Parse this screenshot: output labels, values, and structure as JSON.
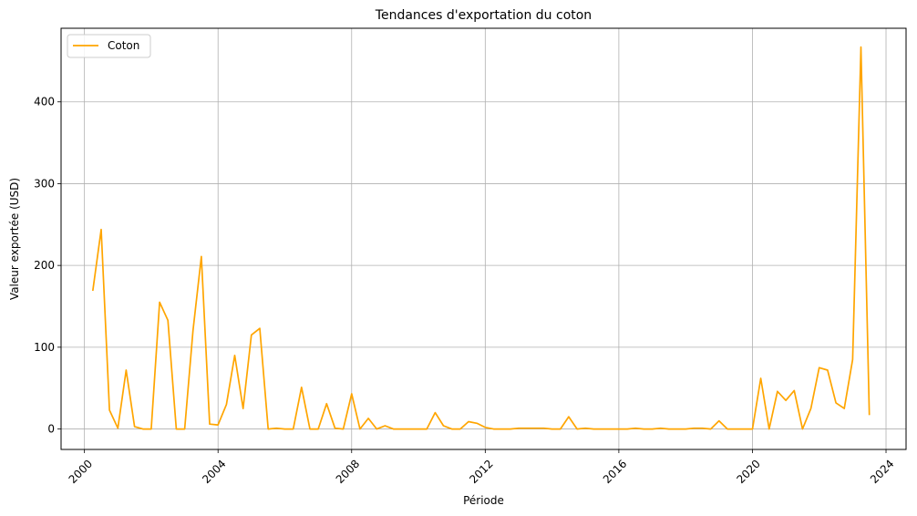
{
  "chart_data": {
    "type": "line",
    "title": "Tendances d'exportation du coton",
    "xlabel": "Période",
    "ylabel": "Valeur exportée (USD)",
    "xlim": [
      1999.3,
      2024.6
    ],
    "ylim": [
      -25,
      490
    ],
    "xticks": [
      2000,
      2004,
      2008,
      2012,
      2016,
      2020,
      2024
    ],
    "xtick_labels": [
      "2000",
      "2004",
      "2008",
      "2012",
      "2016",
      "2020",
      "2024"
    ],
    "yticks": [
      0,
      100,
      200,
      300,
      400
    ],
    "ytick_labels": [
      "0",
      "100",
      "200",
      "300",
      "400"
    ],
    "grid": true,
    "legend_position": "top-left",
    "series": [
      {
        "name": "Coton",
        "color": "#ffa500",
        "x": [
          2000.25,
          2000.5,
          2000.75,
          2001.0,
          2001.25,
          2001.5,
          2001.75,
          2002.0,
          2002.25,
          2002.5,
          2002.75,
          2003.0,
          2003.25,
          2003.5,
          2003.75,
          2004.0,
          2004.25,
          2004.5,
          2004.75,
          2005.0,
          2005.25,
          2005.5,
          2005.75,
          2006.0,
          2006.25,
          2006.5,
          2006.75,
          2007.0,
          2007.25,
          2007.5,
          2007.75,
          2008.0,
          2008.25,
          2008.5,
          2008.75,
          2009.0,
          2009.25,
          2009.5,
          2009.75,
          2010.0,
          2010.25,
          2010.5,
          2010.75,
          2011.0,
          2011.25,
          2011.5,
          2011.75,
          2012.0,
          2012.25,
          2012.5,
          2012.75,
          2013.0,
          2013.25,
          2013.5,
          2013.75,
          2014.0,
          2014.25,
          2014.5,
          2014.75,
          2015.0,
          2015.25,
          2015.5,
          2015.75,
          2016.0,
          2016.25,
          2016.5,
          2016.75,
          2017.0,
          2017.25,
          2017.5,
          2017.75,
          2018.0,
          2018.25,
          2018.5,
          2018.75,
          2019.0,
          2019.25,
          2019.5,
          2019.75,
          2020.0,
          2020.25,
          2020.5,
          2020.75,
          2021.0,
          2021.25,
          2021.5,
          2021.75,
          2022.0,
          2022.25,
          2022.5,
          2022.75,
          2023.0,
          2023.25,
          2023.5
        ],
        "values": [
          169,
          244,
          23,
          1,
          72,
          3,
          0,
          0,
          155,
          133,
          0,
          0,
          120,
          211,
          6,
          5,
          30,
          90,
          25,
          115,
          123,
          0,
          1,
          0,
          0,
          51,
          0,
          0,
          31,
          1,
          0,
          43,
          0,
          13,
          0,
          4,
          0,
          0,
          0,
          0,
          0,
          20,
          4,
          0,
          0,
          9,
          7,
          2,
          0,
          0,
          0,
          1,
          1,
          1,
          1,
          0,
          0,
          15,
          0,
          1,
          0,
          0,
          0,
          0,
          0,
          1,
          0,
          0,
          1,
          0,
          0,
          0,
          1,
          1,
          0,
          10,
          0,
          0,
          0,
          0,
          62,
          0,
          46,
          35,
          47,
          0,
          25,
          75,
          72,
          32,
          25,
          85,
          467,
          17
        ]
      }
    ]
  }
}
